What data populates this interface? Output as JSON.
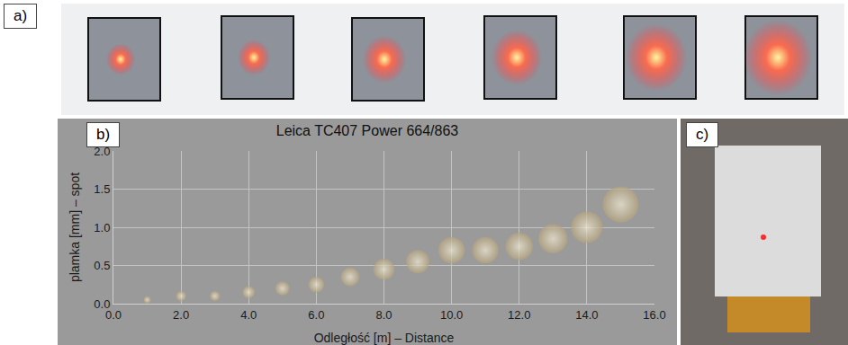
{
  "panel_labels": [
    "a)",
    "b)",
    "c)"
  ],
  "chart_data": {
    "type": "bubble",
    "title": "Leica TC407 Power 664/863",
    "x_label": "Odległość [m] – Distance",
    "y_label": "plamka [mm] – spot",
    "x": [
      1,
      2,
      3,
      4,
      5,
      6,
      7,
      8,
      9,
      10,
      11,
      12,
      13,
      14,
      15
    ],
    "values": [
      0.05,
      0.1,
      0.1,
      0.15,
      0.2,
      0.25,
      0.35,
      0.45,
      0.55,
      0.7,
      0.7,
      0.75,
      0.85,
      1.0,
      1.3
    ],
    "sizes": [
      0.05,
      0.1,
      0.1,
      0.15,
      0.2,
      0.25,
      0.35,
      0.45,
      0.55,
      0.7,
      0.7,
      0.75,
      0.85,
      1.0,
      1.3
    ],
    "color": "#b3a27c",
    "xlim": [
      0,
      16
    ],
    "xticks": [
      {
        "value": 0,
        "label": "0.0"
      },
      {
        "value": 2,
        "label": "2.0"
      },
      {
        "value": 4,
        "label": "4.0"
      },
      {
        "value": 6,
        "label": "6.0"
      },
      {
        "value": 8,
        "label": "8.0"
      },
      {
        "value": 10,
        "label": "10.0"
      },
      {
        "value": 12,
        "label": "12.0"
      },
      {
        "value": 14,
        "label": "14.0"
      },
      {
        "value": 16,
        "label": "16.0"
      }
    ],
    "ylim": [
      0,
      2
    ],
    "yticks": [
      {
        "value": 0,
        "label": "0.0"
      },
      {
        "value": 0.5,
        "label": "0.5"
      },
      {
        "value": 1,
        "label": "1.0"
      },
      {
        "value": 1.5,
        "label": "1.5"
      },
      {
        "value": 2,
        "label": "2.0"
      }
    ],
    "grid": true
  }
}
